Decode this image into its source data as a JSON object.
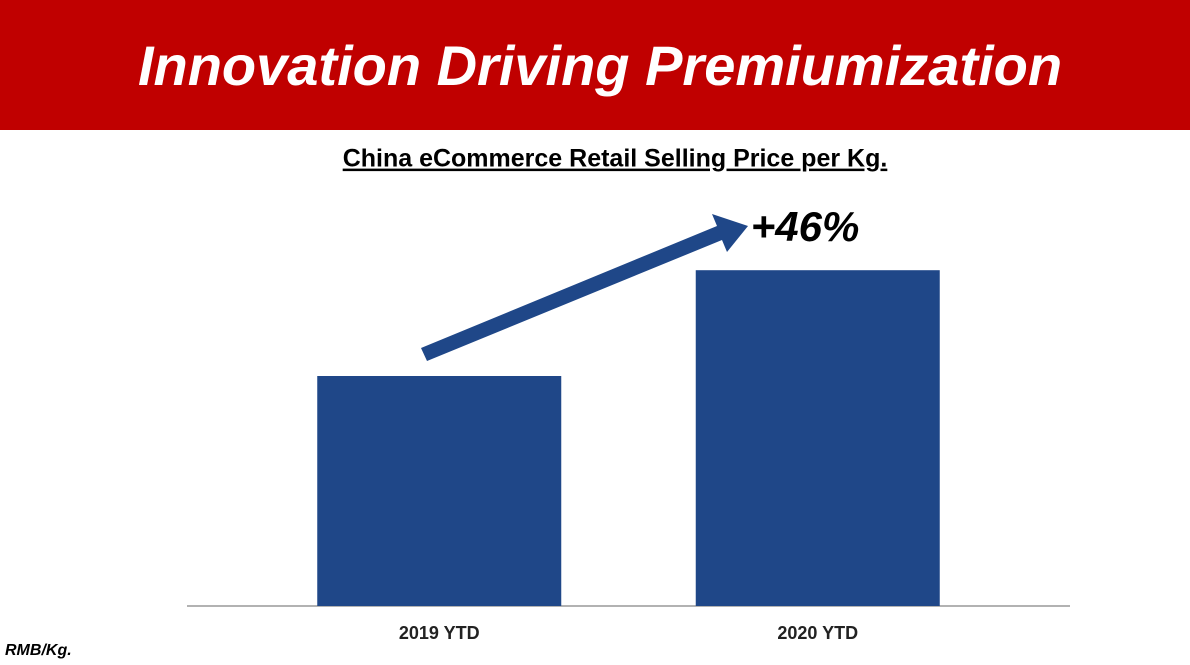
{
  "header": {
    "title": "Innovation Driving Premiumization"
  },
  "chart_data": {
    "type": "bar",
    "title": "China eCommerce Retail Selling Price per Kg.",
    "categories": [
      "2019 YTD",
      "2020 YTD"
    ],
    "values": [
      100,
      146
    ],
    "color": "#1f4788",
    "ylim": [
      0,
      160
    ],
    "annotation": "+46%",
    "unit_note": "RMB/Kg."
  }
}
